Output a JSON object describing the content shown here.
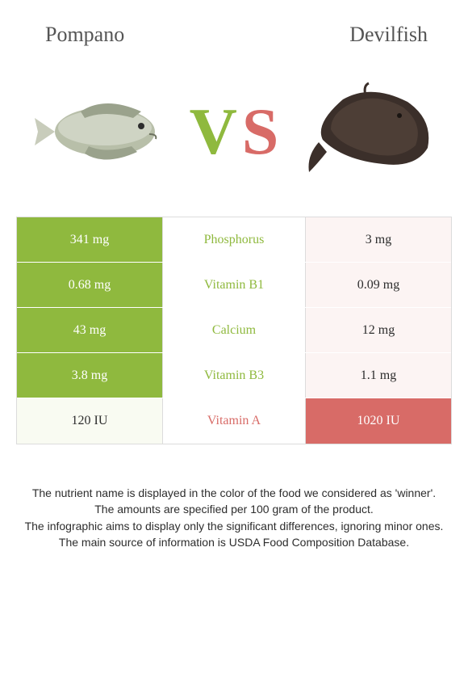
{
  "colors": {
    "left": "#8fb93e",
    "right": "#d86b67",
    "left_faded": "#f9fbf2",
    "right_faded": "#fcf4f3",
    "border": "#dcdcdc",
    "text_dark": "#2d2d2d"
  },
  "header": {
    "left_name": "Pompano",
    "right_name": "Devilfish"
  },
  "vs": {
    "v": "V",
    "s": "S"
  },
  "rows": [
    {
      "nutrient": "Phosphorus",
      "left_val": "341 mg",
      "right_val": "3 mg",
      "winner": "left"
    },
    {
      "nutrient": "Vitamin B1",
      "left_val": "0.68 mg",
      "right_val": "0.09 mg",
      "winner": "left"
    },
    {
      "nutrient": "Calcium",
      "left_val": "43 mg",
      "right_val": "12 mg",
      "winner": "left"
    },
    {
      "nutrient": "Vitamin B3",
      "left_val": "3.8 mg",
      "right_val": "1.1 mg",
      "winner": "left"
    },
    {
      "nutrient": "Vitamin A",
      "left_val": "120 IU",
      "right_val": "1020 IU",
      "winner": "right"
    }
  ],
  "disclaimer": {
    "l1": "The nutrient name is displayed in the color of the food we considered as 'winner'.",
    "l2": "The amounts are specified per 100 gram of the product.",
    "l3": "The infographic aims to display only the significant differences, ignoring minor ones.",
    "l4": "The main source of information is USDA Food Composition Database."
  }
}
